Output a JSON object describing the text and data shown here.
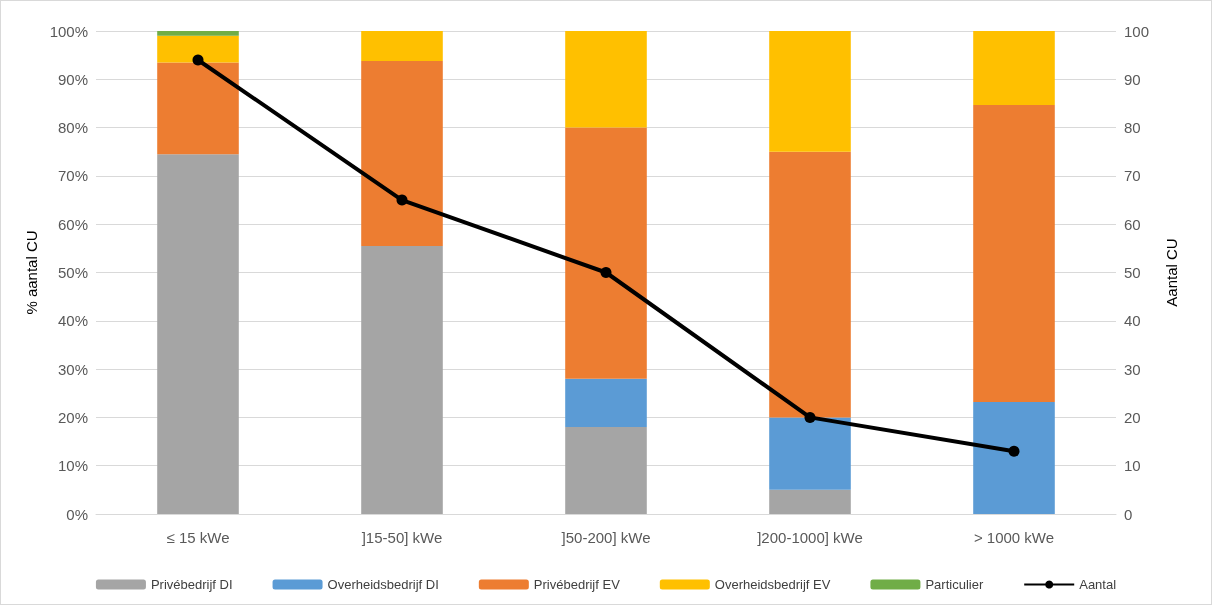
{
  "chart_data": {
    "type": "bar",
    "stacked": true,
    "ylabel": "% aantal CU",
    "y2label": "Aantal CU",
    "categories": [
      "≤ 15 kWe",
      "]15-50] kWe",
      "]50-200] kWe",
      "]200-1000] kWe",
      "> 1000 kWe"
    ],
    "series": [
      {
        "name": "Privébedrijf DI",
        "color": "#a5a5a5",
        "values": [
          74.5,
          55.5,
          18,
          5,
          0
        ]
      },
      {
        "name": "Overheidsbedrijf DI",
        "color": "#5b9bd5",
        "values": [
          0,
          0,
          10,
          15,
          23.2
        ]
      },
      {
        "name": "Privébedrijf EV",
        "color": "#ed7d31",
        "values": [
          19,
          38.3,
          52,
          55,
          61.5
        ]
      },
      {
        "name": "Overheidsbedrijf EV",
        "color": "#ffc000",
        "values": [
          5.5,
          6.2,
          20,
          25,
          15.3
        ]
      },
      {
        "name": "Particulier",
        "color": "#70ad47",
        "values": [
          1,
          0,
          0,
          0,
          0
        ]
      },
      {
        "name": "Aantal",
        "type": "line",
        "axis": "y2",
        "color": "#000000",
        "marker": "circle",
        "values": [
          94,
          65,
          50,
          20,
          13
        ]
      }
    ],
    "ylim": [
      0,
      100
    ],
    "yticks": [
      {
        "value": 0,
        "label": "0%"
      },
      {
        "value": 10,
        "label": "10%"
      },
      {
        "value": 20,
        "label": "20%"
      },
      {
        "value": 30,
        "label": "30%"
      },
      {
        "value": 40,
        "label": "40%"
      },
      {
        "value": 50,
        "label": "50%"
      },
      {
        "value": 60,
        "label": "60%"
      },
      {
        "value": 70,
        "label": "70%"
      },
      {
        "value": 80,
        "label": "80%"
      },
      {
        "value": 90,
        "label": "90%"
      },
      {
        "value": 100,
        "label": "100%"
      }
    ],
    "y2lim": [
      0,
      100
    ],
    "y2ticks": [
      0,
      10,
      20,
      30,
      40,
      50,
      60,
      70,
      80,
      90,
      100
    ],
    "grid": "y",
    "legend": "bottom"
  }
}
